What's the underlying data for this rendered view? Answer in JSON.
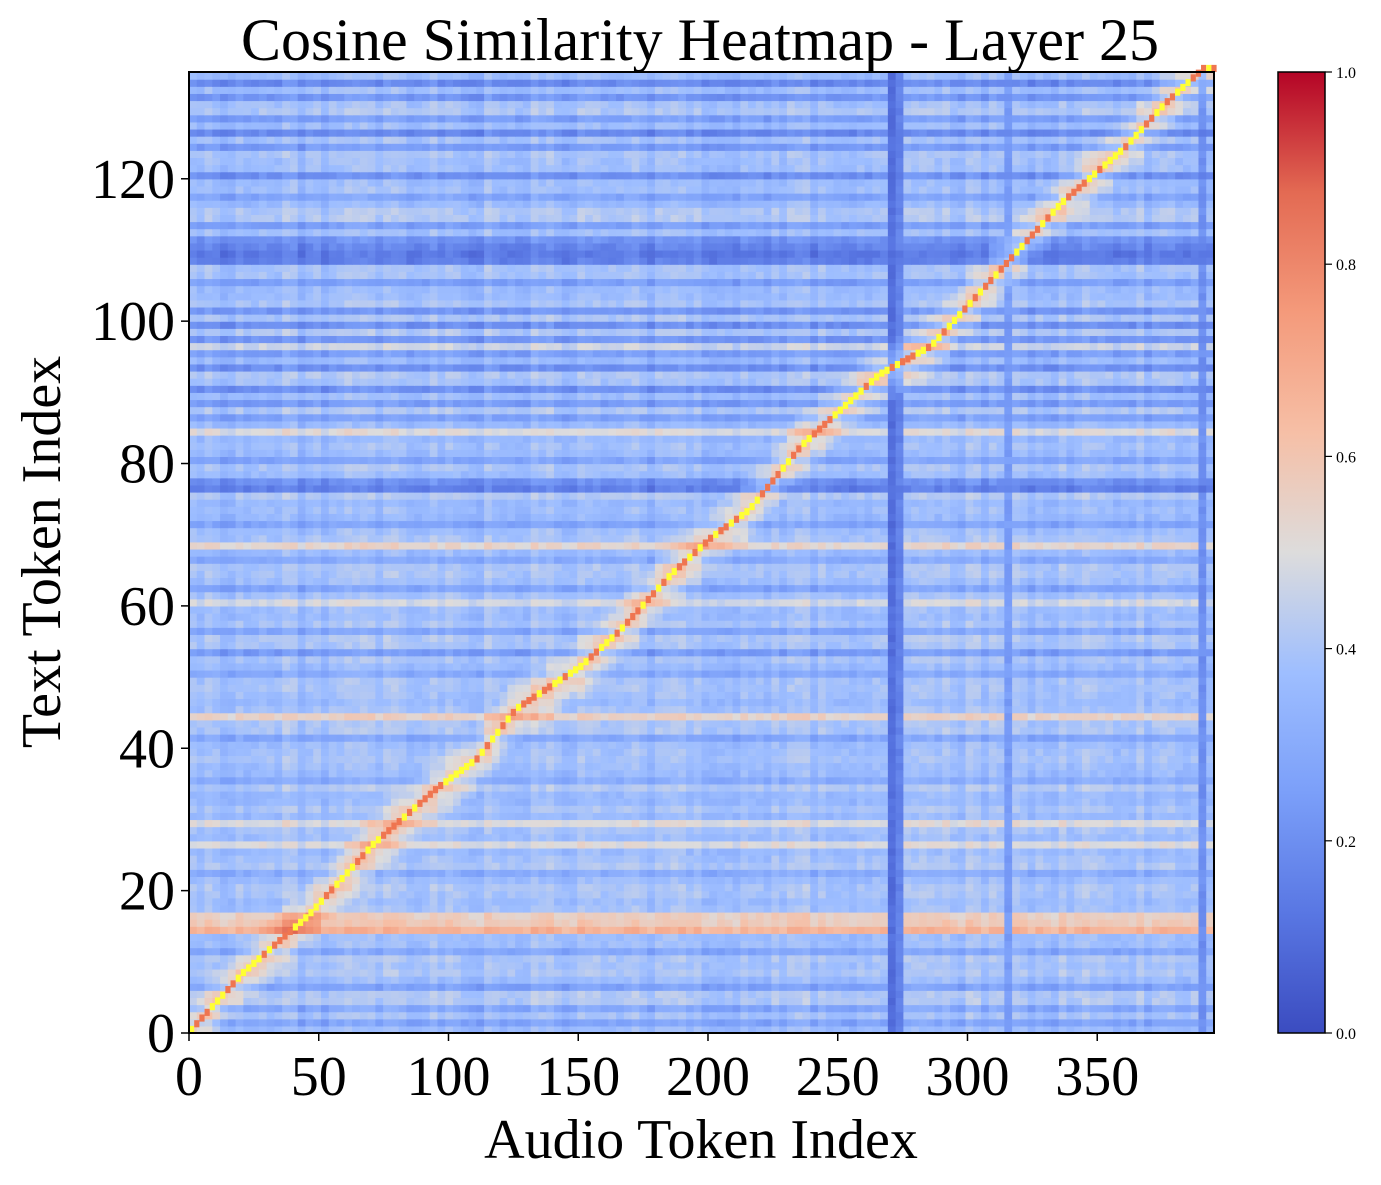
{
  "chart_data": {
    "type": "heatmap",
    "title": "Cosine Similarity Heatmap - Layer 25",
    "xlabel": "Audio Token Index",
    "ylabel": "Text Token Index",
    "x_range": [
      0,
      395
    ],
    "y_range": [
      0,
      135
    ],
    "x_ticks": [
      "0",
      "50",
      "100",
      "150",
      "200",
      "250",
      "300",
      "350"
    ],
    "y_ticks": [
      "0",
      "20",
      "40",
      "60",
      "80",
      "100",
      "120"
    ],
    "colormap": "coolwarm",
    "colorbar": {
      "range": [
        0.0,
        1.0
      ],
      "ticks": [
        "0.0",
        "0.2",
        "0.4",
        "0.6",
        "0.8",
        "1.0"
      ]
    },
    "highlight_color": "#ffff33",
    "alignment_path": [
      [
        0,
        0
      ],
      [
        20,
        8
      ],
      [
        45,
        16
      ],
      [
        55,
        20
      ],
      [
        70,
        26
      ],
      [
        95,
        34
      ],
      [
        110,
        38
      ],
      [
        125,
        45
      ],
      [
        150,
        51
      ],
      [
        165,
        56
      ],
      [
        185,
        64
      ],
      [
        200,
        69
      ],
      [
        215,
        73
      ],
      [
        235,
        82
      ],
      [
        250,
        87
      ],
      [
        265,
        92
      ],
      [
        285,
        96
      ],
      [
        300,
        102
      ],
      [
        320,
        110
      ],
      [
        335,
        116
      ],
      [
        360,
        124
      ],
      [
        375,
        130
      ],
      [
        390,
        135
      ]
    ],
    "base_similarity": 0.38,
    "high_similarity_rows": [
      {
        "row": 14,
        "value": 0.66
      },
      {
        "row": 15,
        "value": 0.58
      },
      {
        "row": 16,
        "value": 0.56
      },
      {
        "row": 26,
        "value": 0.5
      },
      {
        "row": 29,
        "value": 0.5
      },
      {
        "row": 44,
        "value": 0.55
      },
      {
        "row": 60,
        "value": 0.48
      },
      {
        "row": 68,
        "value": 0.53
      },
      {
        "row": 84,
        "value": 0.5
      },
      {
        "row": 96,
        "value": 0.46
      }
    ],
    "low_similarity_rows": [
      {
        "row": 1,
        "value": 0.27
      },
      {
        "row": 3,
        "value": 0.28
      },
      {
        "row": 6,
        "value": 0.26
      },
      {
        "row": 11,
        "value": 0.28
      },
      {
        "row": 22,
        "value": 0.3
      },
      {
        "row": 35,
        "value": 0.3
      },
      {
        "row": 41,
        "value": 0.28
      },
      {
        "row": 50,
        "value": 0.29
      },
      {
        "row": 53,
        "value": 0.24
      },
      {
        "row": 56,
        "value": 0.28
      },
      {
        "row": 62,
        "value": 0.27
      },
      {
        "row": 66,
        "value": 0.29
      },
      {
        "row": 71,
        "value": 0.27
      },
      {
        "row": 76,
        "value": 0.15
      },
      {
        "row": 77,
        "value": 0.2
      },
      {
        "row": 80,
        "value": 0.27
      },
      {
        "row": 86,
        "value": 0.26
      },
      {
        "row": 88,
        "value": 0.24
      },
      {
        "row": 90,
        "value": 0.2
      },
      {
        "row": 93,
        "value": 0.2
      },
      {
        "row": 95,
        "value": 0.25
      },
      {
        "row": 97,
        "value": 0.22
      },
      {
        "row": 99,
        "value": 0.2
      },
      {
        "row": 101,
        "value": 0.22
      },
      {
        "row": 105,
        "value": 0.25
      },
      {
        "row": 108,
        "value": 0.15
      },
      {
        "row": 109,
        "value": 0.13
      },
      {
        "row": 110,
        "value": 0.17
      },
      {
        "row": 111,
        "value": 0.21
      },
      {
        "row": 113,
        "value": 0.25
      },
      {
        "row": 117,
        "value": 0.27
      },
      {
        "row": 120,
        "value": 0.2
      },
      {
        "row": 124,
        "value": 0.24
      },
      {
        "row": 126,
        "value": 0.18
      },
      {
        "row": 128,
        "value": 0.25
      },
      {
        "row": 131,
        "value": 0.22
      },
      {
        "row": 133,
        "value": 0.18
      }
    ],
    "low_similarity_columns": [
      {
        "col": 272,
        "value": 0.1
      },
      {
        "col": 273,
        "value": 0.16
      },
      {
        "col": 316,
        "value": 0.24
      },
      {
        "col": 391,
        "value": 0.2
      }
    ]
  }
}
